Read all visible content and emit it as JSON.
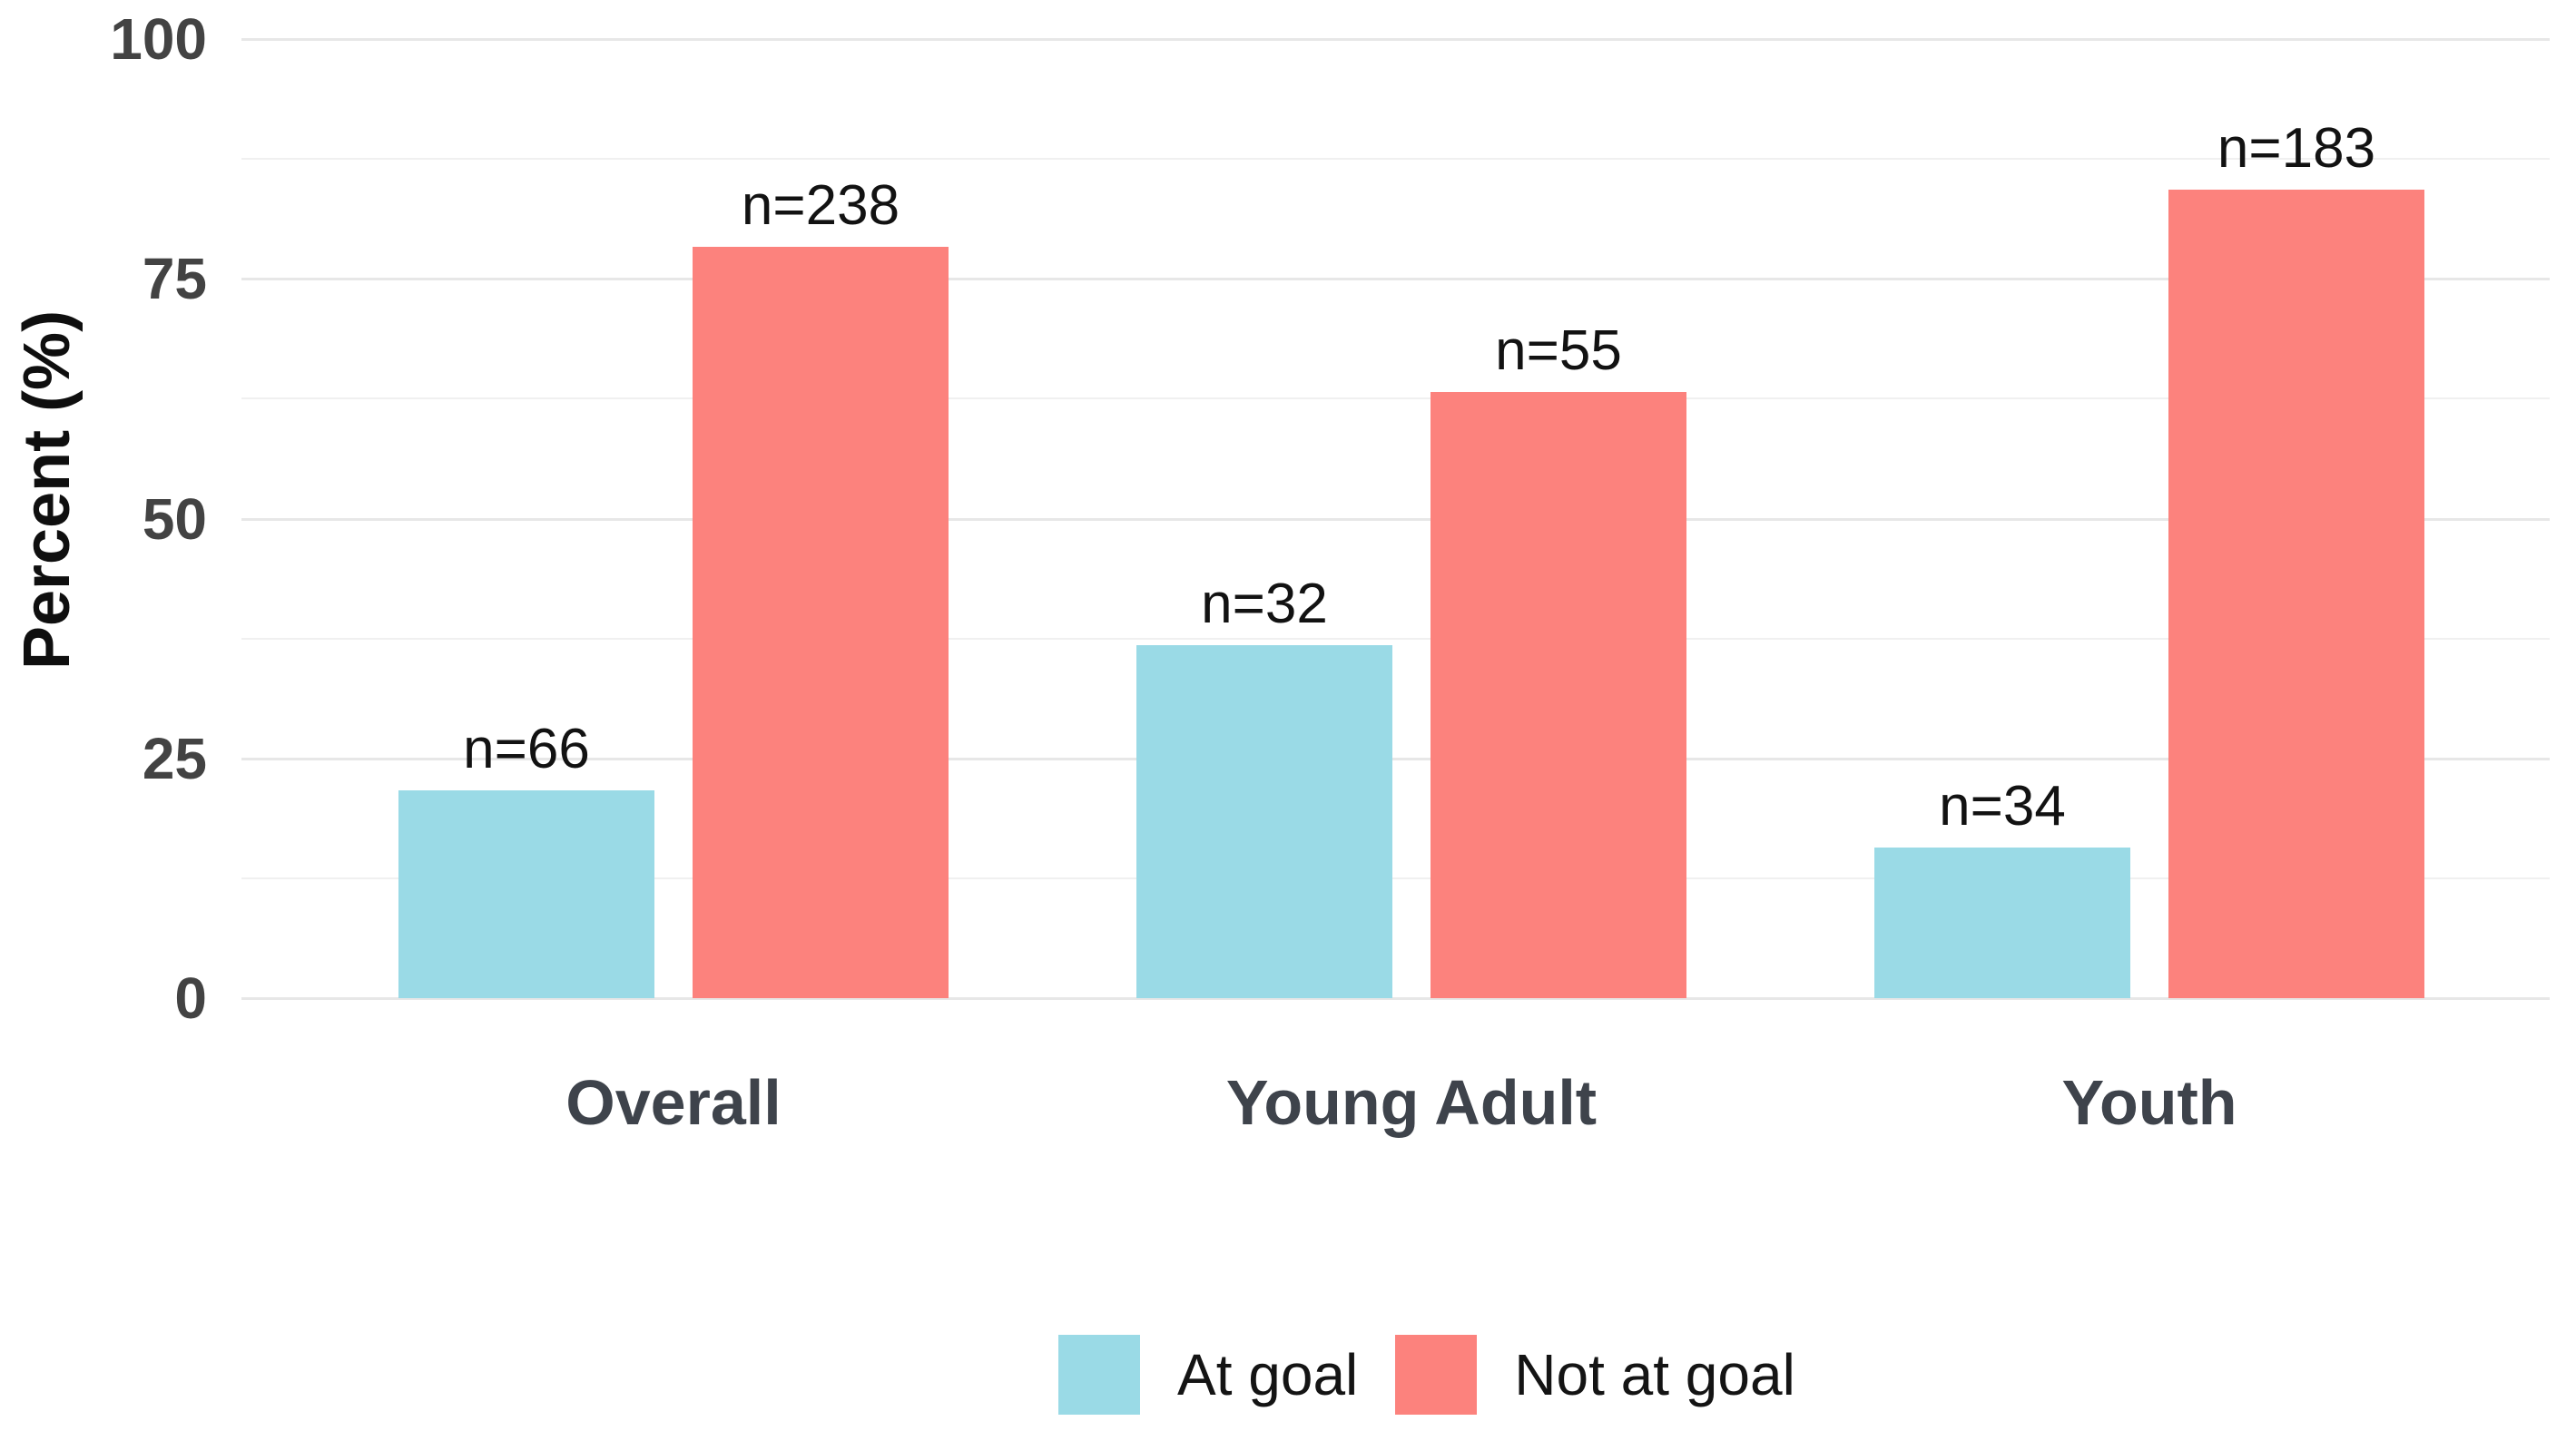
{
  "chart_data": {
    "type": "bar",
    "title": "",
    "ylabel": "Percent (%)",
    "xlabel": "",
    "ylim": [
      0,
      100
    ],
    "yticks": [
      100,
      75,
      50,
      25,
      0
    ],
    "minor_gridlines": [
      87.5,
      62.5,
      37.5,
      12.5
    ],
    "grid": true,
    "legend_position": "bottom-center",
    "categories": [
      "Overall",
      "Young Adult",
      "Youth"
    ],
    "series": [
      {
        "name": "At goal",
        "color": "#9ADAE6",
        "values": [
          21.7,
          36.8,
          15.7
        ],
        "counts": [
          66,
          32,
          34
        ],
        "bar_labels": [
          "n=66",
          "n=32",
          "n=34"
        ]
      },
      {
        "name": "Not at goal",
        "color": "#FC827D",
        "values": [
          78.3,
          63.2,
          84.3
        ],
        "counts": [
          238,
          55,
          183
        ],
        "bar_labels": [
          "n=238",
          "n=55",
          "n=183"
        ]
      }
    ]
  },
  "legend": {
    "items": [
      {
        "label": "At goal",
        "swatch_color": "#9ADAE6"
      },
      {
        "label": "Not at goal",
        "swatch_color": "#FC827D"
      }
    ]
  }
}
